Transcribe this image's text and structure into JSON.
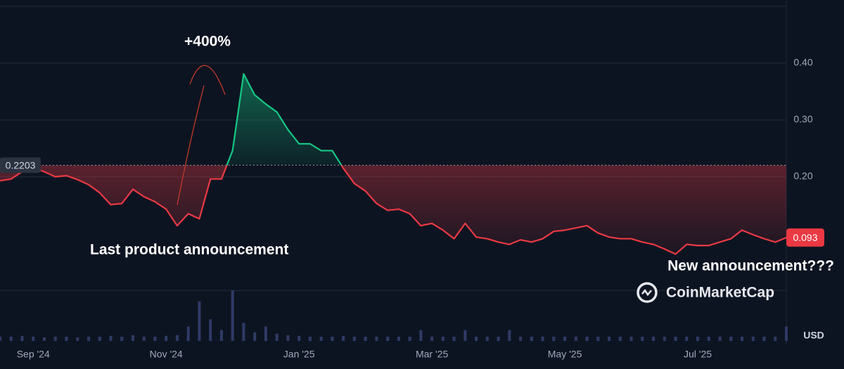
{
  "chart_data": {
    "type": "line",
    "categories": [
      null,
      null,
      null,
      "Sep '24",
      null,
      null,
      null,
      null,
      null,
      null,
      null,
      null,
      null,
      null,
      null,
      "Nov '24",
      null,
      null,
      null,
      null,
      null,
      null,
      null,
      null,
      null,
      null,
      null,
      "Jan '25",
      null,
      null,
      null,
      null,
      null,
      null,
      null,
      null,
      null,
      null,
      null,
      "Mar '25",
      null,
      null,
      null,
      null,
      null,
      null,
      null,
      null,
      null,
      null,
      null,
      "May '25",
      null,
      null,
      null,
      null,
      null,
      null,
      null,
      null,
      null,
      null,
      null,
      "Jul '25",
      null,
      null,
      null,
      null,
      null,
      null,
      null,
      null
    ],
    "values": [
      0.193,
      0.196,
      0.209,
      0.215,
      0.209,
      0.2,
      0.202,
      0.195,
      0.186,
      0.172,
      0.151,
      0.153,
      0.178,
      0.165,
      0.156,
      0.143,
      0.114,
      0.135,
      0.126,
      0.196,
      0.196,
      0.246,
      0.381,
      0.344,
      0.328,
      0.314,
      0.283,
      0.258,
      0.258,
      0.246,
      0.246,
      0.215,
      0.188,
      0.175,
      0.153,
      0.141,
      0.143,
      0.135,
      0.114,
      0.118,
      0.106,
      0.091,
      0.118,
      0.094,
      0.091,
      0.085,
      0.081,
      0.089,
      0.085,
      0.091,
      0.104,
      0.106,
      0.11,
      0.114,
      0.101,
      0.094,
      0.091,
      0.091,
      0.085,
      0.081,
      0.073,
      0.064,
      0.081,
      0.079,
      0.079,
      0.085,
      0.091,
      0.106,
      0.098,
      0.091,
      0.085,
      0.093
    ],
    "volume": [
      6,
      6,
      7,
      6,
      5,
      6,
      6,
      5,
      6,
      6,
      7,
      6,
      8,
      6,
      6,
      7,
      8,
      20,
      55,
      30,
      15,
      70,
      25,
      12,
      20,
      10,
      8,
      7,
      6,
      6,
      6,
      7,
      6,
      6,
      6,
      6,
      6,
      6,
      15,
      6,
      6,
      6,
      15,
      6,
      6,
      6,
      15,
      6,
      6,
      6,
      6,
      6,
      6,
      6,
      6,
      6,
      6,
      6,
      6,
      6,
      6,
      6,
      6,
      6,
      6,
      6,
      6,
      6,
      6,
      6,
      6,
      20
    ],
    "volume_label": "USD",
    "baseline": 0.2203,
    "up_color": "#16c784",
    "down_color": "#ea3943",
    "ylim": [
      0,
      0.5
    ],
    "yticks": [
      {
        "value": 0.2,
        "label": "0.20"
      },
      {
        "value": 0.3,
        "label": "0.30"
      },
      {
        "value": 0.4,
        "label": "0.40"
      }
    ],
    "grid": true,
    "annotations": [
      "+400%",
      "Last product announcement",
      "New announcement???"
    ],
    "watermark": "CoinMarketCap"
  }
}
